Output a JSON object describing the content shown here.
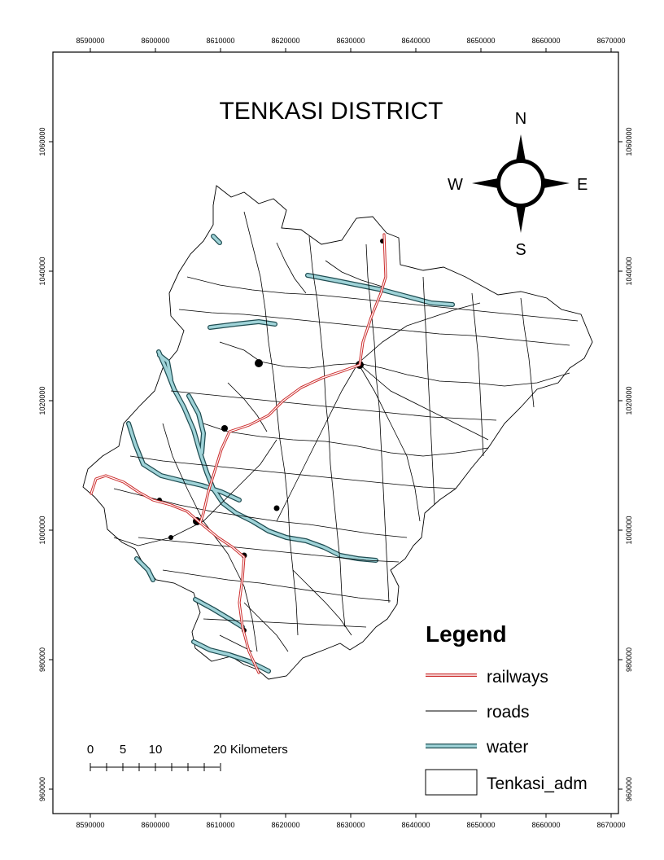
{
  "map": {
    "title": "TENKASI DISTRICT",
    "compass": {
      "north": "N",
      "south": "S",
      "east": "E",
      "west": "W"
    },
    "legend": {
      "title": "Legend",
      "items": [
        {
          "label": "railways",
          "color": "#cc2b2b"
        },
        {
          "label": "roads",
          "color": "#000000"
        },
        {
          "label": "water",
          "color": "#9fd3d8"
        },
        {
          "label": "Tenkasi_adm",
          "color": "#000000"
        }
      ]
    },
    "scale_bar": {
      "labels": [
        "0",
        "5",
        "10",
        "20 Kilometers"
      ],
      "values_km": [
        0,
        5,
        10,
        20
      ]
    },
    "grid": {
      "x_ticks": [
        "8590000",
        "8600000",
        "8610000",
        "8620000",
        "8630000",
        "8640000",
        "8650000",
        "8660000",
        "8670000"
      ],
      "y_ticks": [
        "1060000",
        "1040000",
        "1020000",
        "1000000",
        "980000",
        "960000"
      ]
    },
    "colors": {
      "railway": "#cc2b2b",
      "road": "#000000",
      "water_fill": "#9fd3d8",
      "water_edge": "#1f4d52",
      "boundary": "#000000"
    }
  }
}
